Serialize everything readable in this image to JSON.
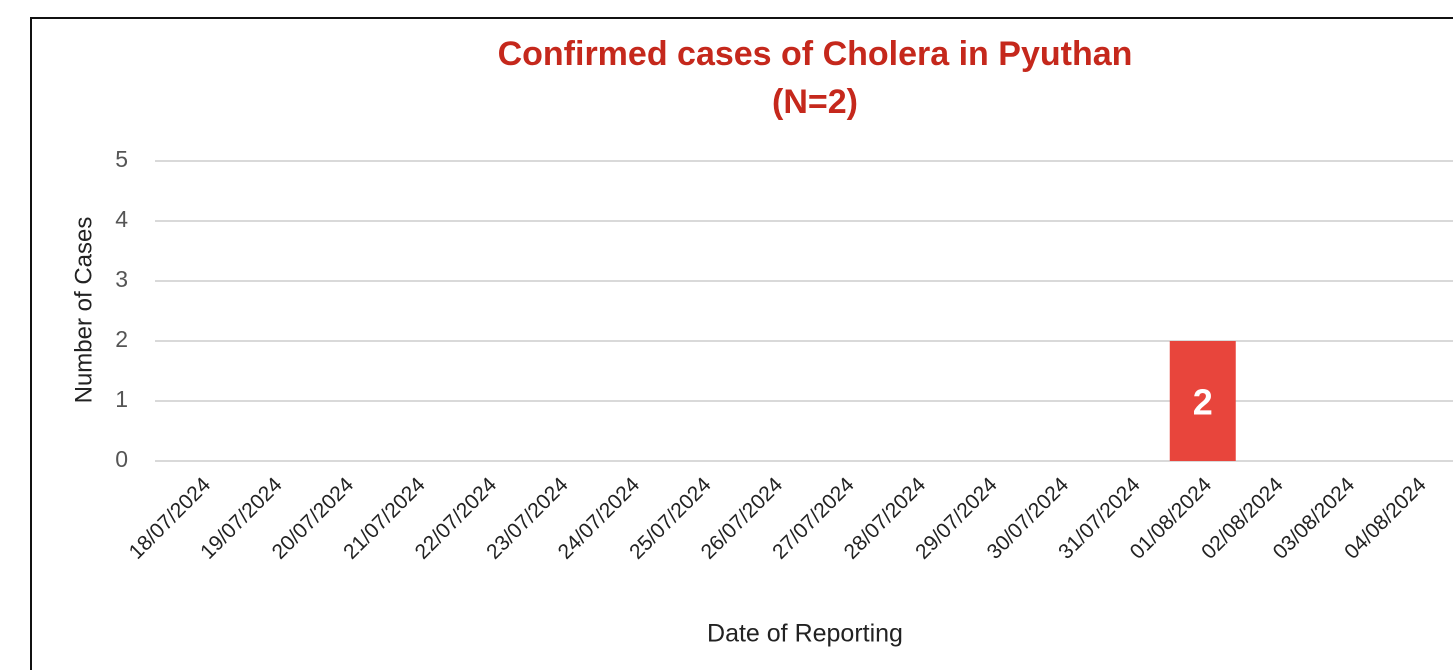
{
  "chart_data": {
    "type": "bar",
    "title": "Confirmed cases of Cholera in Pyuthan (N=2)",
    "x_label": "Date of Reporting",
    "y_label": "Number of Cases",
    "categories": [
      "18/07/2024",
      "19/07/2024",
      "20/07/2024",
      "21/07/2024",
      "22/07/2024",
      "23/07/2024",
      "24/07/2024",
      "25/07/2024",
      "26/07/2024",
      "27/07/2024",
      "28/07/2024",
      "29/07/2024",
      "30/07/2024",
      "31/07/2024",
      "01/08/2024",
      "02/08/2024",
      "03/08/2024",
      "04/08/2024"
    ],
    "values": [
      0,
      0,
      0,
      0,
      0,
      0,
      0,
      0,
      0,
      0,
      0,
      0,
      0,
      0,
      2,
      0,
      0,
      0
    ],
    "color": "#e8453c",
    "ylim": [
      0,
      5
    ],
    "yticks": [
      0,
      1,
      2,
      3,
      4,
      5
    ],
    "grid": true
  }
}
